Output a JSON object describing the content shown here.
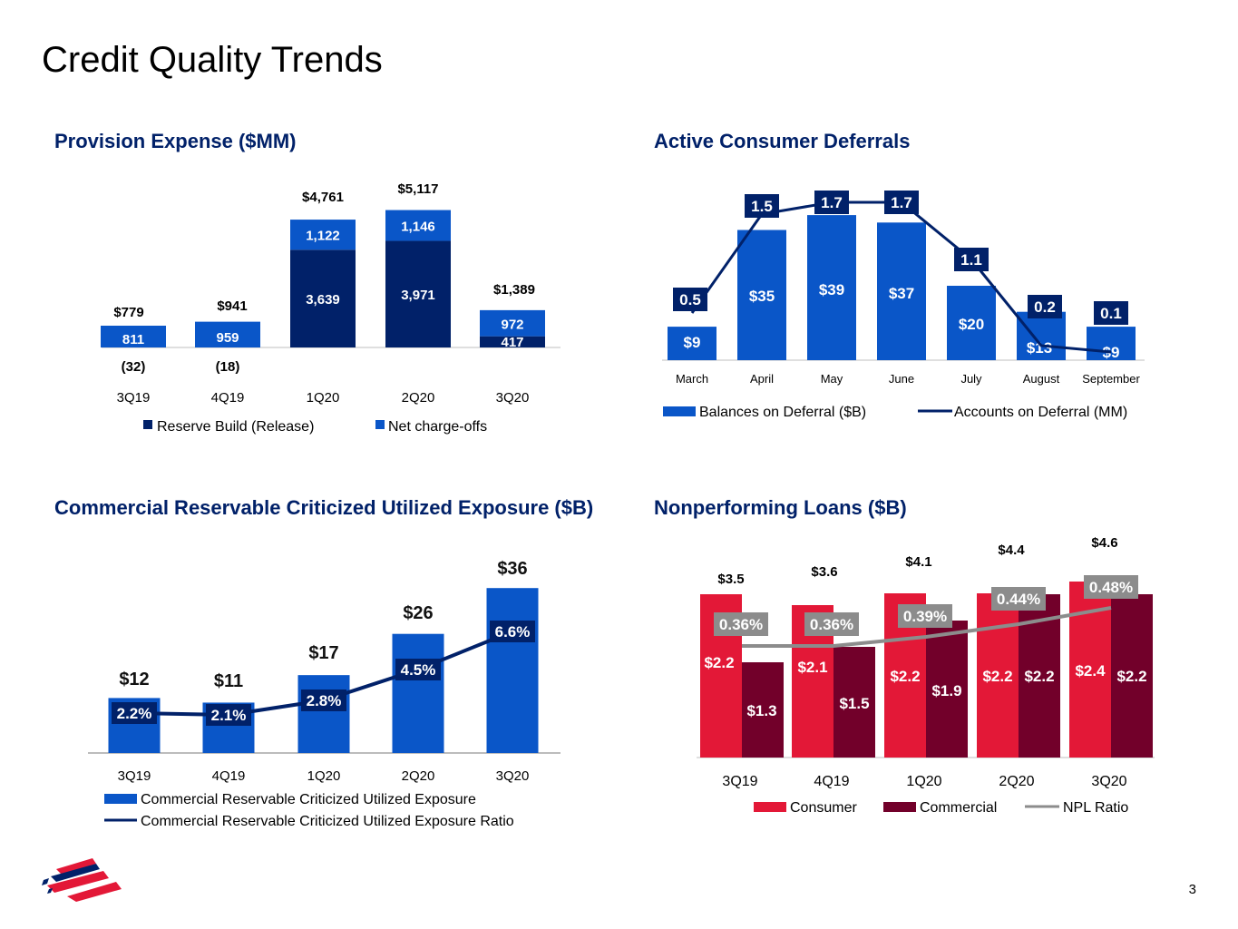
{
  "page": {
    "title": "Credit Quality Trends",
    "page_number": "3"
  },
  "colors": {
    "navy": "#012169",
    "blue": "#0a56c8",
    "red": "#e31837",
    "maroon": "#72002a",
    "gray": "#8c8c8c"
  },
  "chart_data": [
    {
      "id": "provision",
      "type": "bar",
      "title": "Provision Expense ($MM)",
      "categories": [
        "3Q19",
        "4Q19",
        "1Q20",
        "2Q20",
        "3Q20"
      ],
      "series": [
        {
          "name": "Reserve Build (Release)",
          "values": [
            -32,
            -18,
            3639,
            3971,
            417
          ],
          "labels": [
            "(32)",
            "(18)",
            "3,639",
            "3,971",
            "417"
          ]
        },
        {
          "name": "Net charge-offs",
          "values": [
            811,
            959,
            1122,
            1146,
            972
          ],
          "labels": [
            "811",
            "959",
            "1,122",
            "1,146",
            "972"
          ]
        }
      ],
      "totals": [
        "$779",
        "$941",
        "$4,761",
        "$5,117",
        "$1,389"
      ],
      "legend": "bottom"
    },
    {
      "id": "deferrals",
      "type": "bar",
      "title": "Active Consumer Deferrals",
      "categories": [
        "March",
        "April",
        "May",
        "June",
        "July",
        "August",
        "September"
      ],
      "series": [
        {
          "name": "Balances on Deferral ($B)",
          "values": [
            9,
            35,
            39,
            37,
            20,
            13,
            9
          ],
          "labels": [
            "$9",
            "$35",
            "$39",
            "$37",
            "$20",
            "$13",
            "$9"
          ]
        },
        {
          "name": "Accounts on Deferral (MM)",
          "type": "line",
          "values": [
            0.5,
            1.5,
            1.7,
            1.7,
            1.1,
            0.2,
            0.1
          ],
          "labels": [
            "0.5",
            "1.5",
            "1.7",
            "1.7",
            "1.1",
            "0.2",
            "0.1"
          ]
        }
      ],
      "legend": "bottom"
    },
    {
      "id": "criticized",
      "type": "bar",
      "title": "Commercial Reservable Criticized Utilized Exposure ($B)",
      "categories": [
        "3Q19",
        "4Q19",
        "1Q20",
        "2Q20",
        "3Q20"
      ],
      "series": [
        {
          "name": "Commercial Reservable Criticized Utilized Exposure",
          "values": [
            12,
            11,
            17,
            26,
            36
          ],
          "labels": [
            "$12",
            "$11",
            "$17",
            "$26",
            "$36"
          ]
        },
        {
          "name": "Commercial Reservable Criticized Utilized Exposure Ratio",
          "type": "line",
          "values": [
            2.2,
            2.1,
            2.8,
            4.5,
            6.6
          ],
          "labels": [
            "2.2%",
            "2.1%",
            "2.8%",
            "4.5%",
            "6.6%"
          ]
        }
      ],
      "legend": "bottom"
    },
    {
      "id": "npl",
      "type": "bar",
      "title": "Nonperforming Loans ($B)",
      "categories": [
        "3Q19",
        "4Q19",
        "1Q20",
        "2Q20",
        "3Q20"
      ],
      "series": [
        {
          "name": "Consumer",
          "values": [
            2.2,
            2.1,
            2.2,
            2.2,
            2.4
          ],
          "labels": [
            "$2.2",
            "$2.1",
            "$2.2",
            "$2.2",
            "$2.4"
          ]
        },
        {
          "name": "Commercial",
          "values": [
            1.3,
            1.5,
            1.9,
            2.2,
            2.2
          ],
          "labels": [
            "$1.3",
            "$1.5",
            "$1.9",
            "$2.2",
            "$2.2"
          ]
        },
        {
          "name": "NPL Ratio",
          "type": "line",
          "values": [
            0.36,
            0.36,
            0.39,
            0.44,
            0.48
          ],
          "labels": [
            "0.36%",
            "0.36%",
            "0.39%",
            "0.44%",
            "0.48%"
          ]
        }
      ],
      "totals": [
        "$3.5",
        "$3.6",
        "$4.1",
        "$4.4",
        "$4.6"
      ],
      "legend": "bottom"
    }
  ]
}
